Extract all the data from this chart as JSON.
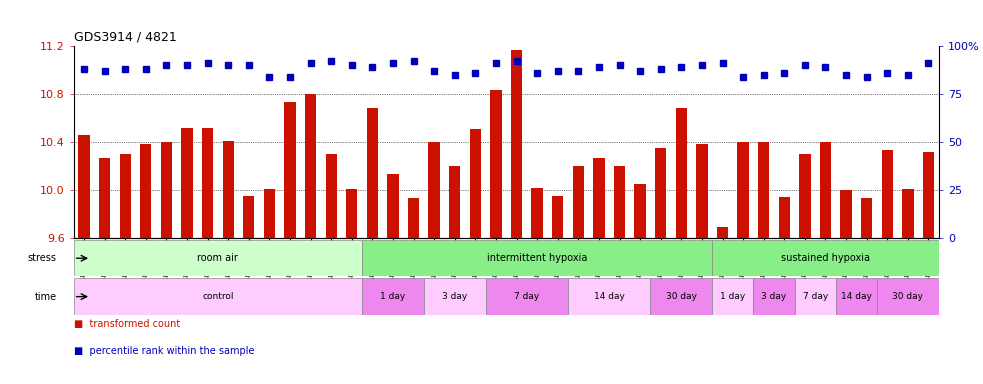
{
  "title": "GDS3914 / 4821",
  "samples": [
    "GSM215660",
    "GSM215661",
    "GSM215662",
    "GSM215663",
    "GSM215664",
    "GSM215665",
    "GSM215666",
    "GSM215667",
    "GSM215668",
    "GSM215669",
    "GSM215670",
    "GSM215671",
    "GSM215672",
    "GSM215673",
    "GSM215674",
    "GSM215675",
    "GSM215676",
    "GSM215677",
    "GSM215678",
    "GSM215679",
    "GSM215680",
    "GSM215681",
    "GSM215682",
    "GSM215683",
    "GSM215684",
    "GSM215685",
    "GSM215686",
    "GSM215687",
    "GSM215688",
    "GSM215689",
    "GSM215690",
    "GSM215691",
    "GSM215692",
    "GSM215693",
    "GSM215694",
    "GSM215695",
    "GSM215696",
    "GSM215697",
    "GSM215698",
    "GSM215699",
    "GSM215700",
    "GSM215701"
  ],
  "bar_values": [
    10.46,
    10.27,
    10.3,
    10.38,
    10.4,
    10.52,
    10.52,
    10.41,
    9.95,
    10.01,
    10.73,
    10.8,
    10.3,
    10.01,
    10.68,
    10.13,
    9.93,
    10.4,
    10.2,
    10.51,
    10.83,
    11.17,
    10.02,
    9.95,
    10.2,
    10.27,
    10.2,
    10.05,
    10.35,
    10.68,
    10.38,
    9.69,
    10.4,
    10.4,
    9.94,
    10.3,
    10.4,
    10.0,
    9.93,
    10.33,
    10.01,
    10.32
  ],
  "pct_values": [
    88,
    87,
    88,
    88,
    90,
    90,
    91,
    90,
    90,
    84,
    84,
    91,
    92,
    90,
    89,
    91,
    92,
    87,
    85,
    86,
    91,
    92,
    86,
    87,
    87,
    89,
    90,
    87,
    88,
    89,
    90,
    91,
    84,
    85,
    86,
    90,
    89,
    85,
    84,
    86,
    85,
    91
  ],
  "ylim_left": [
    9.6,
    11.2
  ],
  "ylim_right": [
    0,
    100
  ],
  "yticks_left": [
    9.6,
    10.0,
    10.4,
    10.8,
    11.2
  ],
  "yticks_right": [
    0,
    25,
    50,
    75,
    100
  ],
  "bar_color": "#cc1100",
  "dot_color": "#0000bb",
  "stress_defs": [
    [
      "room air",
      0,
      14,
      "#ccffcc"
    ],
    [
      "intermittent hypoxia",
      14,
      31,
      "#88ee88"
    ],
    [
      "sustained hypoxia",
      31,
      42,
      "#88ee88"
    ]
  ],
  "time_defs": [
    [
      "control",
      0,
      14,
      "#ffccff"
    ],
    [
      "1 day",
      14,
      17,
      "#ee88ee"
    ],
    [
      "3 day",
      17,
      20,
      "#ffccff"
    ],
    [
      "7 day",
      20,
      24,
      "#ee88ee"
    ],
    [
      "14 day",
      24,
      28,
      "#ffccff"
    ],
    [
      "30 day",
      28,
      31,
      "#ee88ee"
    ],
    [
      "1 day",
      31,
      33,
      "#ffccff"
    ],
    [
      "3 day",
      33,
      35,
      "#ee88ee"
    ],
    [
      "7 day",
      35,
      37,
      "#ffccff"
    ],
    [
      "14 day",
      37,
      39,
      "#ee88ee"
    ],
    [
      "30 day",
      39,
      42,
      "#ee88ee"
    ]
  ]
}
